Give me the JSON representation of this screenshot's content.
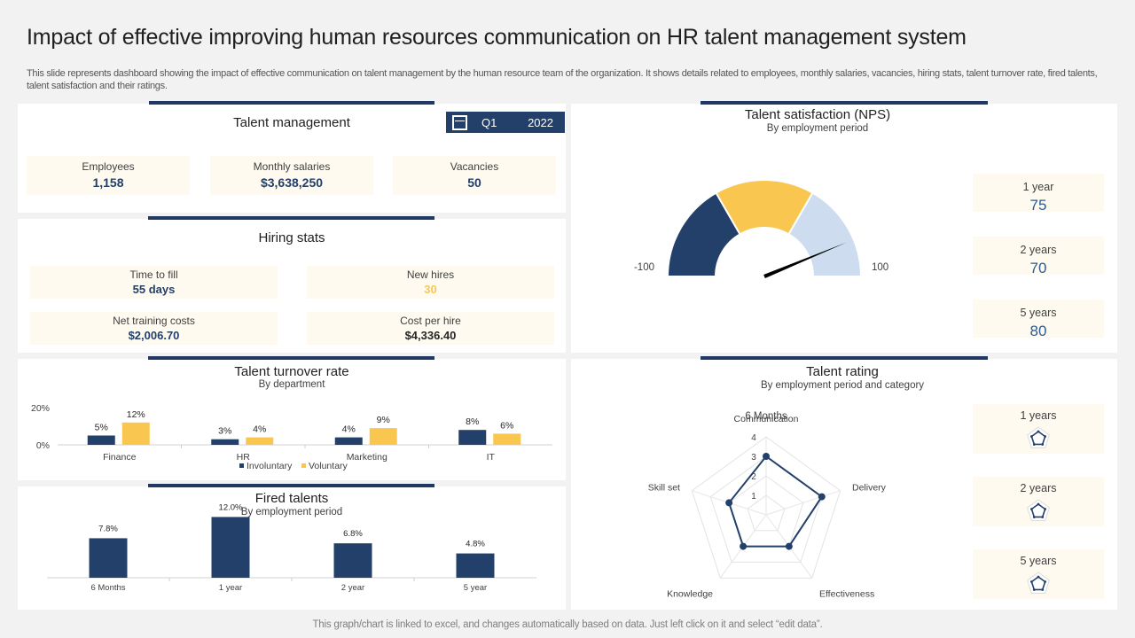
{
  "title": "Impact of effective improving human resources communication on HR talent management system",
  "description": "This slide represents dashboard showing the impact of effective  communication on talent management by the human resource team of the organization. It shows details related to employees, monthly salaries, vacancies, hiring stats, talent turnover rate, fired talents, talent satisfaction and their ratings.",
  "footer": "This graph/chart is linked to excel,  and changes automatically based on data. Just left click on it and select “edit data”.",
  "colors": {
    "navy": "#23406b",
    "yellow": "#f9c74f",
    "light_blue": "#cdddef",
    "cream": "#fefaef"
  },
  "talent_management": {
    "title": "Talent management",
    "period": {
      "quarter": "Q1",
      "year": "2022",
      "icon": "calendar-icon"
    },
    "kpis": [
      {
        "label": "Employees",
        "value": "1,158"
      },
      {
        "label": "Monthly salaries",
        "value": "$3,638,250"
      },
      {
        "label": "Vacancies",
        "value": "50"
      }
    ]
  },
  "hiring_stats": {
    "title": "Hiring stats",
    "items": [
      {
        "label": "Time to fill",
        "value": "55 days"
      },
      {
        "label": "New hires",
        "value": "30"
      },
      {
        "label": "Net training costs",
        "value": "$2,006.70"
      },
      {
        "label": "Cost per hire",
        "value": "$4,336.40"
      }
    ]
  },
  "talent_satisfaction": {
    "title": "Talent satisfaction (NPS)",
    "subtitle": "By employment period",
    "min_label": "-100",
    "max_label": "100",
    "periods": [
      {
        "label": "1 year",
        "value": "75"
      },
      {
        "label": "2 years",
        "value": "70"
      },
      {
        "label": "5 years",
        "value": "80"
      }
    ]
  },
  "talent_rating": {
    "title": "Talent rating",
    "subtitle": "By employment period and category",
    "periods": [
      {
        "label": "1 years",
        "icon": "radar-thumbnail-icon"
      },
      {
        "label": "2 years",
        "icon": "radar-thumbnail-icon"
      },
      {
        "label": "5 years",
        "icon": "radar-thumbnail-icon"
      }
    ]
  },
  "turnover": {
    "title": "Talent turnover rate",
    "subtitle": "By department"
  },
  "fired": {
    "title": "Fired talents",
    "subtitle": "By employment period"
  },
  "chart_data": [
    {
      "id": "nps_gauge",
      "type": "gauge",
      "min": -100,
      "max": 100,
      "bands": [
        {
          "from": -100,
          "to": -33.3,
          "color": "#23406b"
        },
        {
          "from": -33.3,
          "to": 33.3,
          "color": "#f9c74f"
        },
        {
          "from": 33.3,
          "to": 100,
          "color": "#cdddef"
        }
      ],
      "needle_value": 75,
      "tick_labels": [
        "-100",
        "100"
      ]
    },
    {
      "id": "turnover",
      "type": "bar",
      "title": "Talent turnover rate",
      "subtitle": "By department",
      "categories": [
        "Finance",
        "HR",
        "Marketing",
        "IT"
      ],
      "series": [
        {
          "name": "Involuntary",
          "values": [
            5,
            3,
            4,
            8
          ],
          "labels": [
            "5%",
            "3%",
            "4%",
            "8%"
          ],
          "color": "#23406b"
        },
        {
          "name": "Voluntary",
          "values": [
            12,
            4,
            9,
            6
          ],
          "labels": [
            "12%",
            "4%",
            "9%",
            "6%"
          ],
          "color": "#f9c74f"
        }
      ],
      "yticks": [
        "0%",
        "20%"
      ],
      "ylim": [
        0,
        20
      ],
      "legend": "bottom"
    },
    {
      "id": "fired",
      "type": "bar",
      "title": "Fired talents",
      "subtitle": "By employment period",
      "categories": [
        "6 Months",
        "1 year",
        "2 year",
        "5 year"
      ],
      "values": [
        7.8,
        12.0,
        6.8,
        4.8
      ],
      "labels": [
        "7.8%",
        "12.0%",
        "6.8%",
        "4.8%"
      ],
      "ylim": [
        0,
        14
      ]
    },
    {
      "id": "radar",
      "type": "radar",
      "series_title": "6 Months",
      "axes": [
        "Communication",
        "Delivery",
        "Effectiveness",
        "Knowledge",
        "Skill set"
      ],
      "values": [
        3,
        3,
        2,
        2,
        2
      ],
      "scale_labels": [
        "1",
        "2",
        "3",
        "4"
      ],
      "max": 4
    }
  ]
}
